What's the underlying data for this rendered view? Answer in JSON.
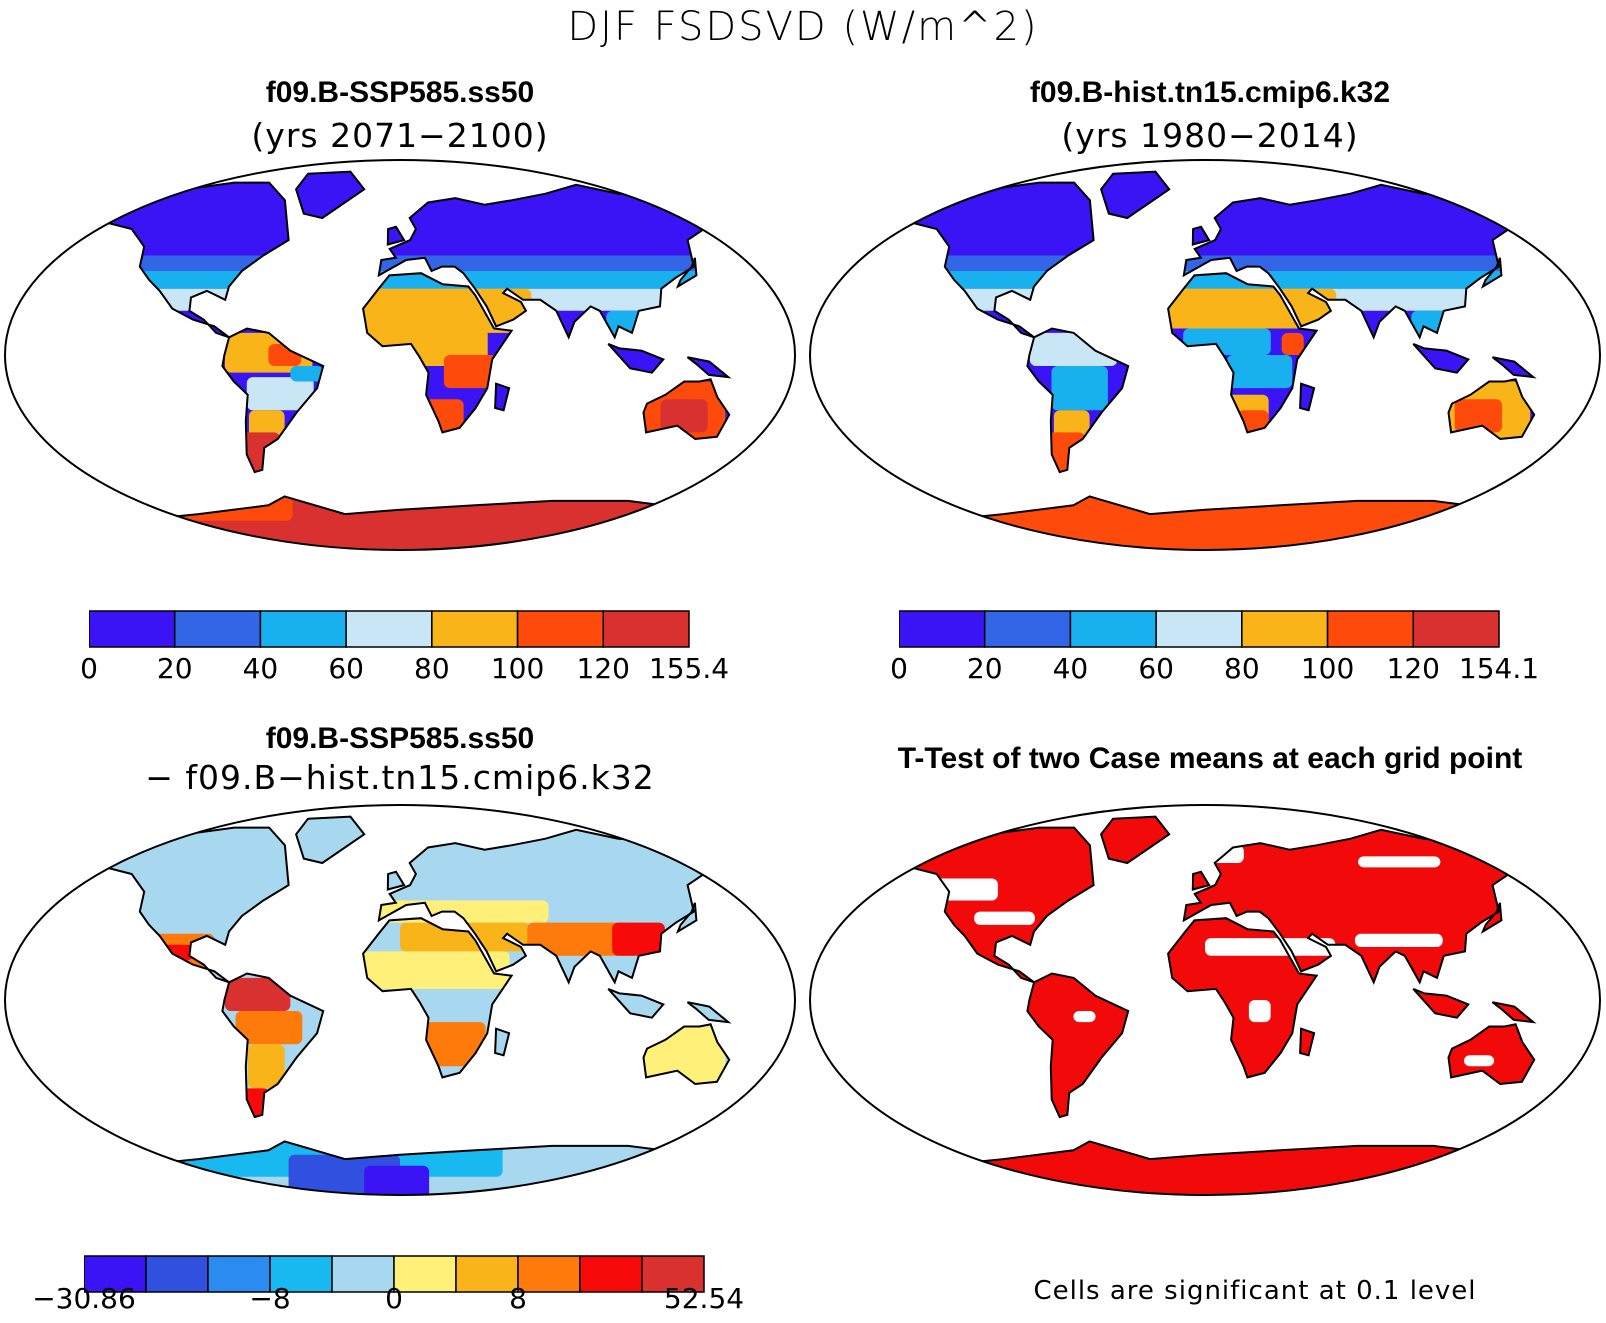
{
  "figure": {
    "title": "DJF FSDSVD (W/m^2)"
  },
  "panels": [
    {
      "title": "f09.B-SSP585.ss50",
      "subtitle": "(yrs 2071−2100)",
      "colorbar": {
        "colors": [
          "#3a14f5",
          "#3366e6",
          "#18b0ee",
          "#c8e6f5",
          "#f8b418",
          "#fe4a0a",
          "#d93030"
        ],
        "tick_labels": [
          "0",
          "20",
          "40",
          "60",
          "80",
          "100",
          "120",
          "155.4"
        ]
      }
    },
    {
      "title": "f09.B-hist.tn15.cmip6.k32",
      "subtitle": "(yrs 1980−2014)",
      "colorbar": {
        "colors": [
          "#3a14f5",
          "#3366e6",
          "#18b0ee",
          "#c8e6f5",
          "#f8b418",
          "#fe4a0a",
          "#d93030"
        ],
        "tick_labels": [
          "0",
          "20",
          "40",
          "60",
          "80",
          "100",
          "120",
          "154.1"
        ]
      }
    },
    {
      "title": "f09.B-SSP585.ss50",
      "subtitle": "− f09.B−hist.tn15.cmip6.k32",
      "colorbar": {
        "colors": [
          "#3a14f5",
          "#3050e0",
          "#2a8cf0",
          "#18b8f0",
          "#a8d8f0",
          "#fff07a",
          "#f8b418",
          "#fe7a0a",
          "#f80a0a",
          "#d93030"
        ],
        "tick_labels": [
          "−30.86",
          "−8",
          "0",
          "8",
          "52.54"
        ]
      }
    },
    {
      "title": "T-Test of two Case means at each grid point",
      "note": "Cells are significant at 0.1 level",
      "significance_color": "#f20a0a"
    }
  ]
}
